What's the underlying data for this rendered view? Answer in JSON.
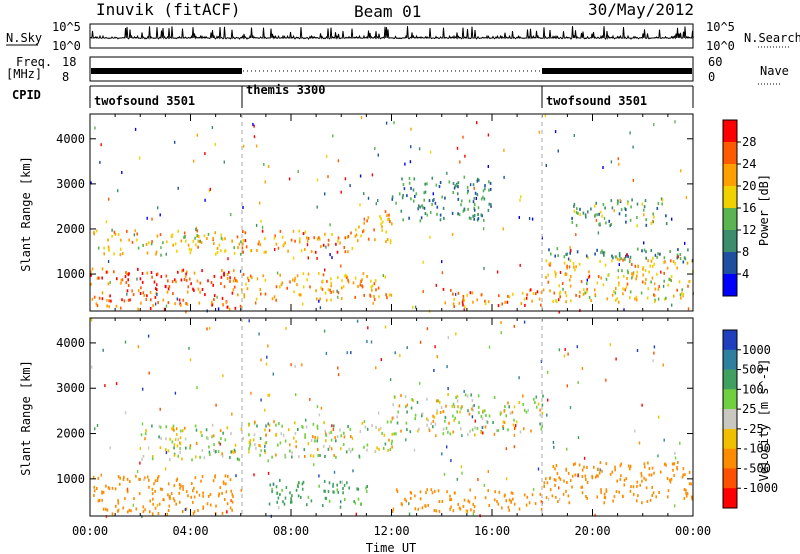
{
  "header": {
    "station": "Inuvik (fitACF)",
    "beam": "Beam 01",
    "date": "30/May/2012"
  },
  "strips": {
    "nsky_label": "N.Sky",
    "nsky_ticks": [
      "10^5",
      "10^0"
    ],
    "nsearch_label": "N.Search",
    "nsearch_ticks": [
      "10^5",
      "10^0"
    ],
    "freq_label_top": "Freq.",
    "freq_label_bottom": "[MHz]",
    "freq_ticks": [
      "18",
      "8"
    ],
    "nave_label": "Nave",
    "nave_ticks": [
      "60",
      "0"
    ],
    "cpid_label": "CPID",
    "cpid_segments": [
      {
        "label": "twofsound 3501",
        "start_hour": 0,
        "end_hour": 6
      },
      {
        "label": "themis 3300",
        "start_hour": 6,
        "end_hour": 18
      },
      {
        "label": "twofsound 3501",
        "start_hour": 18,
        "end_hour": 24
      }
    ]
  },
  "chart_data": [
    {
      "type": "heatmap",
      "quantity": "Power",
      "ylabel": "Slant Range [km]",
      "xlabel": "Time UT",
      "x_ticks": [
        "00:00",
        "04:00",
        "08:00",
        "12:00",
        "16:00",
        "20:00",
        "00:00"
      ],
      "xlim_hours": [
        0,
        24
      ],
      "y_ticks": [
        1000,
        2000,
        3000,
        4000
      ],
      "ylim_km": [
        180,
        4550
      ],
      "colorbar_label": "Power [dB]",
      "colorbar_ticks": [
        "4",
        "8",
        "12",
        "16",
        "20",
        "24",
        "28"
      ],
      "colors": [
        "#0000ff",
        "#1e4fa0",
        "#3c8c6e",
        "#5ab450",
        "#f0d200",
        "#ffa000",
        "#ff5a00",
        "#ff0000"
      ],
      "regions": [
        {
          "t0": 0,
          "t1": 6,
          "r0": 250,
          "r1": 1150,
          "value": 26
        },
        {
          "t0": 0,
          "t1": 6,
          "r0": 1450,
          "r1": 2000,
          "value": 20
        },
        {
          "t0": 6,
          "t1": 10.5,
          "r0": 1500,
          "r1": 2000,
          "value": 24
        },
        {
          "t0": 10.5,
          "t1": 12,
          "r0": 1700,
          "r1": 2450,
          "value": 22
        },
        {
          "t0": 6,
          "t1": 12,
          "r0": 450,
          "r1": 1050,
          "value": 22
        },
        {
          "t0": 14,
          "t1": 18,
          "r0": 300,
          "r1": 700,
          "value": 24
        },
        {
          "t0": 12,
          "t1": 16,
          "r0": 2200,
          "r1": 3200,
          "value": 10
        },
        {
          "t0": 18,
          "t1": 24,
          "r0": 400,
          "r1": 1400,
          "value": 20
        },
        {
          "t0": 18,
          "t1": 24,
          "r0": 1300,
          "r1": 1600,
          "value": 10
        },
        {
          "t0": 19,
          "t1": 23,
          "r0": 2100,
          "r1": 2700,
          "value": 12
        }
      ]
    },
    {
      "type": "heatmap",
      "quantity": "Velocity",
      "ylabel": "Slant Range [km]",
      "xlabel": "Time UT",
      "x_ticks": [
        "00:00",
        "04:00",
        "08:00",
        "12:00",
        "16:00",
        "20:00",
        "00:00"
      ],
      "xlim_hours": [
        0,
        24
      ],
      "y_ticks": [
        1000,
        2000,
        3000,
        4000
      ],
      "ylim_km": [
        180,
        4550
      ],
      "colorbar_label": "Velocity [m s^-1]",
      "colorbar_ticks": [
        "1000",
        "500",
        "100",
        "25",
        "-25",
        "-100",
        "-500",
        "-1000"
      ],
      "colors": [
        "#1f3fbf",
        "#2f7f9f",
        "#3fa060",
        "#6fd040",
        "#c8c8c0",
        "#f0c000",
        "#ff8c00",
        "#ff5000",
        "#ff0000"
      ],
      "regions": [
        {
          "t0": 0,
          "t1": 6,
          "r0": 250,
          "r1": 1100,
          "value": -300
        },
        {
          "t0": 2,
          "t1": 6,
          "r0": 1450,
          "r1": 2200,
          "value": 0
        },
        {
          "t0": 6,
          "t1": 12,
          "r0": 1500,
          "r1": 2300,
          "value": 0
        },
        {
          "t0": 12,
          "t1": 18,
          "r0": 2000,
          "r1": 2900,
          "value": 0
        },
        {
          "t0": 12,
          "t1": 18,
          "r0": 300,
          "r1": 800,
          "value": -300
        },
        {
          "t0": 18,
          "t1": 24,
          "r0": 500,
          "r1": 1400,
          "value": -300
        },
        {
          "t0": 7,
          "t1": 11,
          "r0": 400,
          "r1": 1000,
          "value": 200
        }
      ]
    }
  ]
}
